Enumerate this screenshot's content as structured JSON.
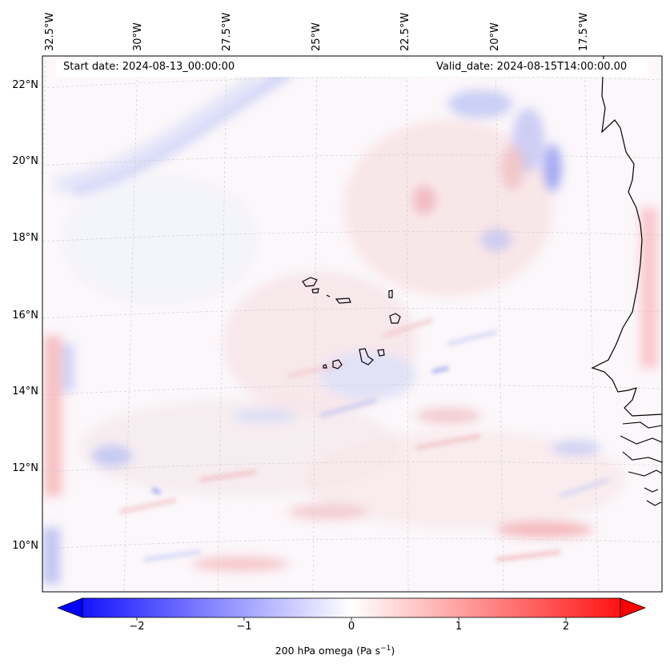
{
  "header": {
    "start_date": "Start date: 2024-08-13_00:00:00",
    "valid_date": "Valid_date: 2024-08-15T14:00:00.00"
  },
  "map": {
    "lon_labels": [
      "32.5°W",
      "30°W",
      "27.5°W",
      "25°W",
      "22.5°W",
      "20°W",
      "17.5°W"
    ],
    "lat_labels": [
      "22°N",
      "20°N",
      "18°N",
      "16°N",
      "14°N",
      "12°N",
      "10°N"
    ],
    "field": "200 hPa omega",
    "units": "Pa s-1",
    "colormap": "bwr",
    "extent": {
      "lon_min": -33.5,
      "lon_max": -16.5,
      "lat_min": 9,
      "lat_max": 22.5
    }
  },
  "colorbar": {
    "ticks": [
      "−2",
      "−1",
      "0",
      "1",
      "2"
    ],
    "tick_values": [
      -2,
      -1,
      0,
      1,
      2
    ],
    "range": [
      -2.5,
      2.5
    ],
    "extend": "both",
    "label_text": "200 hPa omega (Pa s",
    "label_exp": "−1",
    "label_close": ")",
    "colors": {
      "min": "#0000ff",
      "mid": "#ffffff",
      "max": "#ff0000"
    }
  }
}
